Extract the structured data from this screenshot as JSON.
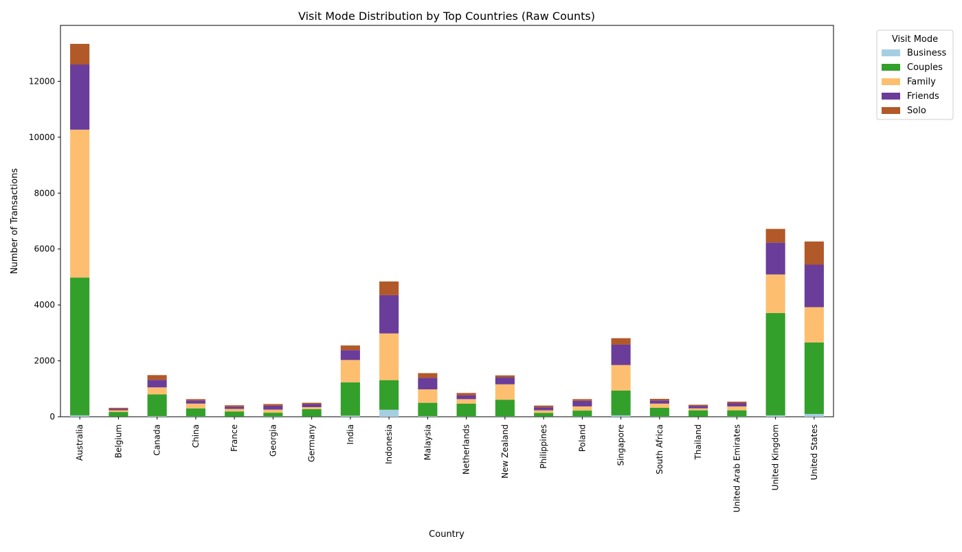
{
  "chart_data": {
    "type": "bar",
    "stacked": true,
    "title": "Visit Mode Distribution by Top Countries (Raw Counts)",
    "xlabel": "Country",
    "ylabel": "Number of Transactions",
    "ylim": [
      0,
      14000
    ],
    "yticks": [
      0,
      2000,
      4000,
      6000,
      8000,
      10000,
      12000
    ],
    "grid": false,
    "legend": {
      "title": "Visit Mode",
      "placement": "outside-top-right"
    },
    "categories": [
      "Australia",
      "Belgium",
      "Canada",
      "China",
      "France",
      "Georgia",
      "Germany",
      "India",
      "Indonesia",
      "Malaysia",
      "Netherlands",
      "New Zealand",
      "Philippines",
      "Poland",
      "Singapore",
      "South Africa",
      "Thailand",
      "United Arab Emirates",
      "United Kingdom",
      "United States"
    ],
    "series": [
      {
        "name": "Business",
        "color": "#a6cee3",
        "values": [
          50,
          5,
          20,
          10,
          5,
          10,
          5,
          40,
          250,
          20,
          10,
          10,
          5,
          10,
          50,
          10,
          5,
          10,
          50,
          100
        ]
      },
      {
        "name": "Couples",
        "color": "#33a02c",
        "values": [
          4930,
          165,
          780,
          290,
          185,
          135,
          270,
          1190,
          1060,
          480,
          460,
          600,
          135,
          210,
          890,
          310,
          225,
          220,
          3660,
          2560
        ]
      },
      {
        "name": "Family",
        "color": "#fdbf6f",
        "values": [
          5290,
          60,
          250,
          170,
          90,
          110,
          70,
          800,
          1670,
          480,
          160,
          550,
          90,
          150,
          910,
          150,
          70,
          140,
          1380,
          1260
        ]
      },
      {
        "name": "Friends",
        "color": "#6a3d9a",
        "values": [
          2330,
          50,
          270,
          110,
          80,
          140,
          110,
          350,
          1370,
          410,
          140,
          250,
          110,
          200,
          730,
          110,
          90,
          120,
          1140,
          1520
        ]
      },
      {
        "name": "Solo",
        "color": "#b15928",
        "values": [
          740,
          40,
          170,
          50,
          50,
          60,
          45,
          170,
          490,
          170,
          80,
          70,
          60,
          60,
          230,
          60,
          40,
          50,
          490,
          830
        ]
      }
    ]
  }
}
